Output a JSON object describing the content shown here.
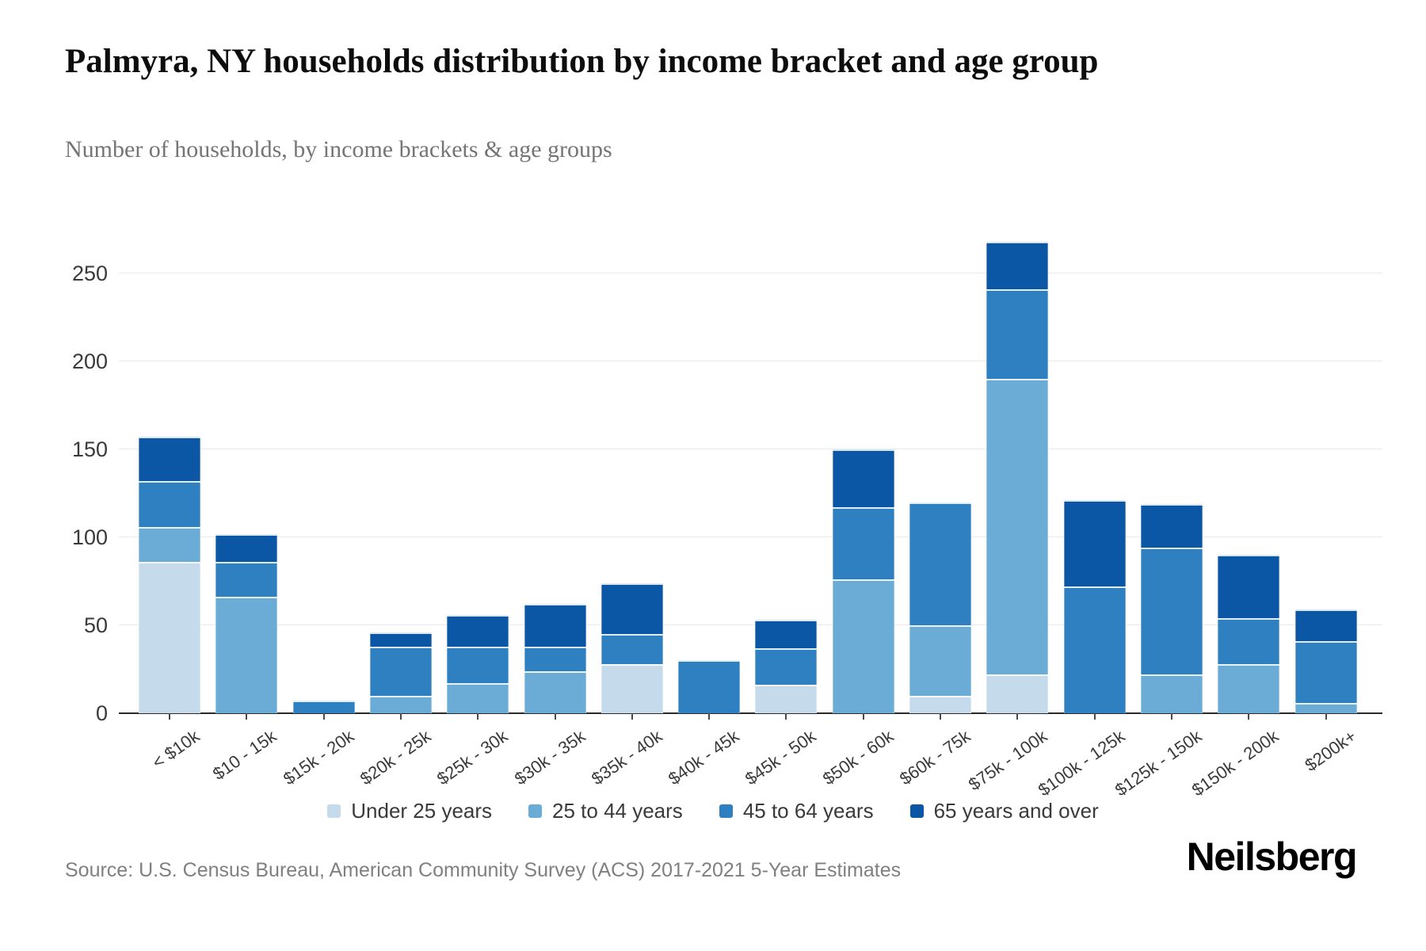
{
  "title": "Palmyra, NY households distribution by income bracket and age group",
  "subtitle": "Number of households, by income brackets & age groups",
  "source": "Source: U.S. Census Bureau, American Community Survey (ACS) 2017-2021 5-Year Estimates",
  "logo": "Neilsberg",
  "chart_data": {
    "type": "bar",
    "stacked": true,
    "title": "Palmyra, NY households distribution by income bracket and age group",
    "subtitle": "Number of households, by income brackets & age groups",
    "xlabel": "",
    "ylabel": "",
    "yticks": [
      0,
      50,
      100,
      150,
      200,
      250
    ],
    "ylim": [
      0,
      275
    ],
    "grid": true,
    "legend_position": "bottom",
    "categories": [
      "< $10k",
      "$10 - 15k",
      "$15k - 20k",
      "$20k - 25k",
      "$25k - 30k",
      "$30k - 35k",
      "$35k - 40k",
      "$40k - 45k",
      "$45k - 50k",
      "$50k - 60k",
      "$60k - 75k",
      "$75k - 100k",
      "$100k - 125k",
      "$125k - 150k",
      "$150k - 200k",
      "$200k+"
    ],
    "series": [
      {
        "name": "Under 25 years",
        "color": "#c5daea",
        "values": [
          86,
          0,
          0,
          0,
          0,
          0,
          28,
          0,
          16,
          0,
          10,
          22,
          0,
          0,
          0,
          0
        ]
      },
      {
        "name": "25 to 44 years",
        "color": "#6aacd5",
        "values": [
          20,
          66,
          0,
          10,
          17,
          24,
          0,
          0,
          0,
          76,
          40,
          168,
          0,
          22,
          28,
          6
        ]
      },
      {
        "name": "45 to 64 years",
        "color": "#2f80c0",
        "values": [
          26,
          20,
          7,
          28,
          21,
          14,
          17,
          30,
          21,
          41,
          70,
          51,
          72,
          72,
          26,
          35
        ]
      },
      {
        "name": "65 years and over",
        "color": "#0b56a5",
        "values": [
          25,
          16,
          0,
          8,
          18,
          24,
          29,
          0,
          16,
          33,
          0,
          27,
          49,
          25,
          36,
          18
        ]
      }
    ],
    "totals": [
      157,
      102,
      7,
      46,
      56,
      62,
      74,
      30,
      53,
      150,
      120,
      268,
      121,
      119,
      90,
      59
    ]
  }
}
